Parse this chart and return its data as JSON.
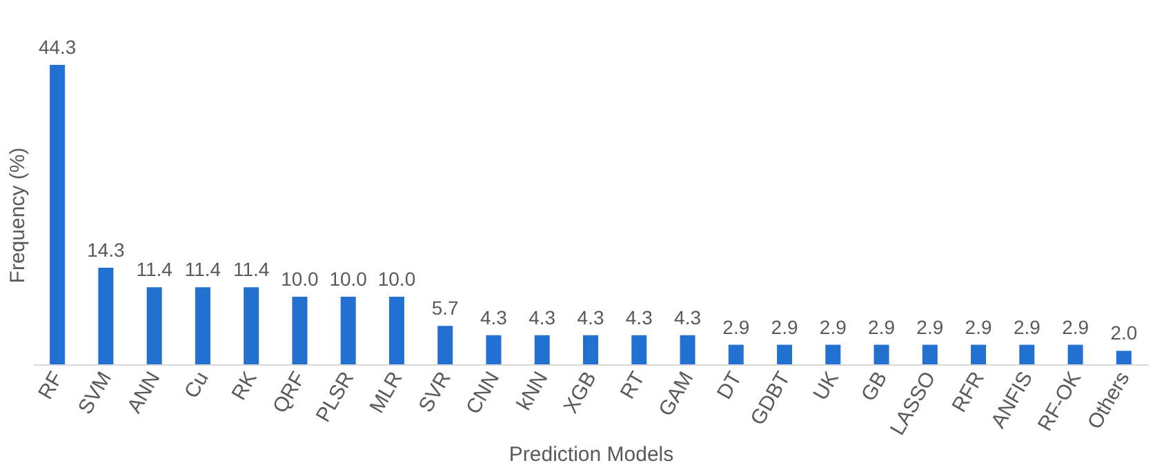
{
  "chart_data": {
    "type": "bar",
    "xlabel": "Prediction Models",
    "ylabel": "Frequency (%)",
    "tick_labels": "x",
    "categories": [
      "RF",
      "SVM",
      "ANN",
      "Cu",
      "RK",
      "QRF",
      "PLSR",
      "MLR",
      "SVR",
      "CNN",
      "kNN",
      "XGB",
      "RT",
      "GAM",
      "DT",
      "GDBT",
      "UK",
      "GB",
      "LASSO",
      "RFR",
      "ANFIS",
      "RF-OK",
      "Others"
    ],
    "values": [
      44.3,
      14.3,
      11.4,
      11.4,
      11.4,
      10.0,
      10.0,
      10.0,
      5.7,
      4.3,
      4.3,
      4.3,
      4.3,
      4.3,
      2.9,
      2.9,
      2.9,
      2.9,
      2.9,
      2.9,
      2.9,
      2.9,
      2.0
    ],
    "value_labels": [
      "44.3",
      "14.3",
      "11.4",
      "11.4",
      "11.4",
      "10.0",
      "10.0",
      "10.0",
      "5.7",
      "4.3",
      "4.3",
      "4.3",
      "4.3",
      "4.3",
      "2.9",
      "2.9",
      "2.9",
      "2.9",
      "2.9",
      "2.9",
      "2.9",
      "2.9",
      "2.0"
    ],
    "color": "#2270cf"
  }
}
